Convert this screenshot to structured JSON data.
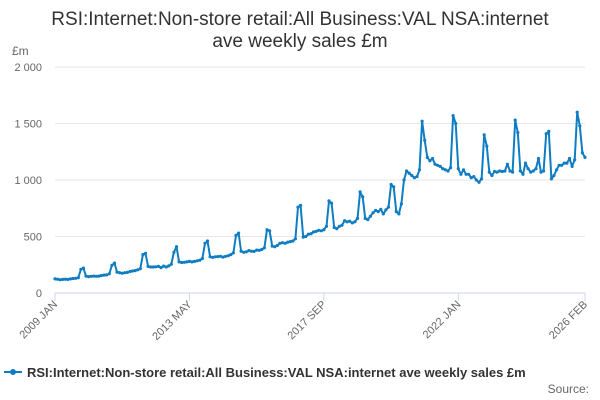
{
  "chart_data": {
    "type": "line",
    "title_lines": [
      "RSI:Internet:Non-store retail:All Business:VAL NSA:internet",
      "ave weekly sales £m"
    ],
    "y_unit": "£m",
    "ylim": [
      0,
      2000
    ],
    "y_ticks": [
      {
        "value": 0,
        "label": "0"
      },
      {
        "value": 500,
        "label": "500"
      },
      {
        "value": 1000,
        "label": "1 000"
      },
      {
        "value": 1500,
        "label": "1 500"
      },
      {
        "value": 2000,
        "label": "2 000"
      }
    ],
    "x_range": [
      "2009-01",
      "2026-02"
    ],
    "x_ticks": [
      {
        "value": "2009-01",
        "label": "2009 JAN"
      },
      {
        "value": "2013-05",
        "label": "2013 MAY"
      },
      {
        "value": "2017-09",
        "label": "2017 SEP"
      },
      {
        "value": "2022-01",
        "label": "2022 JAN"
      },
      {
        "value": "2026-02",
        "label": "2026 FEB"
      }
    ],
    "grid": true,
    "legend_position": "bottom",
    "series": [
      {
        "name": "RSI:Internet:Non-store retail:All Business:VAL NSA:internet ave weekly sales £m",
        "color": "#0f7dc2",
        "points": [
          [
            "2009-01",
            125
          ],
          [
            "2009-02",
            122
          ],
          [
            "2009-03",
            118
          ],
          [
            "2009-04",
            120
          ],
          [
            "2009-05",
            122
          ],
          [
            "2009-06",
            120
          ],
          [
            "2009-07",
            125
          ],
          [
            "2009-08",
            128
          ],
          [
            "2009-09",
            130
          ],
          [
            "2009-10",
            135
          ],
          [
            "2009-11",
            210
          ],
          [
            "2009-12",
            220
          ],
          [
            "2010-01",
            150
          ],
          [
            "2010-02",
            145
          ],
          [
            "2010-03",
            148
          ],
          [
            "2010-04",
            150
          ],
          [
            "2010-05",
            148
          ],
          [
            "2010-06",
            150
          ],
          [
            "2010-07",
            155
          ],
          [
            "2010-08",
            158
          ],
          [
            "2010-09",
            160
          ],
          [
            "2010-10",
            170
          ],
          [
            "2010-11",
            245
          ],
          [
            "2010-12",
            265
          ],
          [
            "2011-01",
            185
          ],
          [
            "2011-02",
            180
          ],
          [
            "2011-03",
            175
          ],
          [
            "2011-04",
            180
          ],
          [
            "2011-05",
            182
          ],
          [
            "2011-06",
            190
          ],
          [
            "2011-07",
            195
          ],
          [
            "2011-08",
            198
          ],
          [
            "2011-09",
            205
          ],
          [
            "2011-10",
            215
          ],
          [
            "2011-11",
            340
          ],
          [
            "2011-12",
            350
          ],
          [
            "2012-01",
            235
          ],
          [
            "2012-02",
            230
          ],
          [
            "2012-03",
            230
          ],
          [
            "2012-04",
            232
          ],
          [
            "2012-05",
            235
          ],
          [
            "2012-06",
            225
          ],
          [
            "2012-07",
            238
          ],
          [
            "2012-08",
            230
          ],
          [
            "2012-09",
            240
          ],
          [
            "2012-10",
            255
          ],
          [
            "2012-11",
            360
          ],
          [
            "2012-12",
            410
          ],
          [
            "2013-01",
            275
          ],
          [
            "2013-02",
            270
          ],
          [
            "2013-03",
            272
          ],
          [
            "2013-04",
            275
          ],
          [
            "2013-05",
            280
          ],
          [
            "2013-06",
            275
          ],
          [
            "2013-07",
            280
          ],
          [
            "2013-08",
            285
          ],
          [
            "2013-09",
            290
          ],
          [
            "2013-10",
            305
          ],
          [
            "2013-11",
            440
          ],
          [
            "2013-12",
            460
          ],
          [
            "2014-01",
            320
          ],
          [
            "2014-02",
            315
          ],
          [
            "2014-03",
            320
          ],
          [
            "2014-04",
            322
          ],
          [
            "2014-05",
            325
          ],
          [
            "2014-06",
            318
          ],
          [
            "2014-07",
            325
          ],
          [
            "2014-08",
            330
          ],
          [
            "2014-09",
            340
          ],
          [
            "2014-10",
            355
          ],
          [
            "2014-11",
            510
          ],
          [
            "2014-12",
            530
          ],
          [
            "2015-01",
            370
          ],
          [
            "2015-02",
            360
          ],
          [
            "2015-03",
            365
          ],
          [
            "2015-04",
            375
          ],
          [
            "2015-05",
            370
          ],
          [
            "2015-06",
            368
          ],
          [
            "2015-07",
            380
          ],
          [
            "2015-08",
            378
          ],
          [
            "2015-09",
            385
          ],
          [
            "2015-10",
            400
          ],
          [
            "2015-11",
            560
          ],
          [
            "2015-12",
            550
          ],
          [
            "2016-01",
            415
          ],
          [
            "2016-02",
            410
          ],
          [
            "2016-03",
            420
          ],
          [
            "2016-04",
            440
          ],
          [
            "2016-05",
            445
          ],
          [
            "2016-06",
            440
          ],
          [
            "2016-07",
            450
          ],
          [
            "2016-08",
            455
          ],
          [
            "2016-09",
            460
          ],
          [
            "2016-10",
            480
          ],
          [
            "2016-11",
            760
          ],
          [
            "2016-12",
            775
          ],
          [
            "2017-01",
            495
          ],
          [
            "2017-02",
            500
          ],
          [
            "2017-03",
            520
          ],
          [
            "2017-04",
            525
          ],
          [
            "2017-05",
            540
          ],
          [
            "2017-06",
            545
          ],
          [
            "2017-07",
            555
          ],
          [
            "2017-08",
            550
          ],
          [
            "2017-09",
            560
          ],
          [
            "2017-10",
            590
          ],
          [
            "2017-11",
            815
          ],
          [
            "2017-12",
            795
          ],
          [
            "2018-01",
            580
          ],
          [
            "2018-02",
            570
          ],
          [
            "2018-03",
            590
          ],
          [
            "2018-04",
            600
          ],
          [
            "2018-05",
            640
          ],
          [
            "2018-06",
            630
          ],
          [
            "2018-07",
            635
          ],
          [
            "2018-08",
            620
          ],
          [
            "2018-09",
            630
          ],
          [
            "2018-10",
            660
          ],
          [
            "2018-11",
            895
          ],
          [
            "2018-12",
            850
          ],
          [
            "2019-01",
            660
          ],
          [
            "2019-02",
            650
          ],
          [
            "2019-03",
            680
          ],
          [
            "2019-04",
            710
          ],
          [
            "2019-05",
            730
          ],
          [
            "2019-06",
            720
          ],
          [
            "2019-07",
            740
          ],
          [
            "2019-08",
            700
          ],
          [
            "2019-09",
            735
          ],
          [
            "2019-10",
            760
          ],
          [
            "2019-11",
            960
          ],
          [
            "2019-12",
            940
          ],
          [
            "2020-01",
            720
          ],
          [
            "2020-02",
            700
          ],
          [
            "2020-03",
            790
          ],
          [
            "2020-04",
            1000
          ],
          [
            "2020-05",
            1080
          ],
          [
            "2020-06",
            1060
          ],
          [
            "2020-07",
            1040
          ],
          [
            "2020-08",
            1020
          ],
          [
            "2020-09",
            1030
          ],
          [
            "2020-10",
            1090
          ],
          [
            "2020-11",
            1520
          ],
          [
            "2020-12",
            1350
          ],
          [
            "2021-01",
            1200
          ],
          [
            "2021-02",
            1170
          ],
          [
            "2021-03",
            1190
          ],
          [
            "2021-04",
            1140
          ],
          [
            "2021-05",
            1130
          ],
          [
            "2021-06",
            1120
          ],
          [
            "2021-07",
            1100
          ],
          [
            "2021-08",
            1090
          ],
          [
            "2021-09",
            1080
          ],
          [
            "2021-10",
            1110
          ],
          [
            "2021-11",
            1570
          ],
          [
            "2021-12",
            1500
          ],
          [
            "2022-01",
            1100
          ],
          [
            "2022-02",
            1050
          ],
          [
            "2022-03",
            1090
          ],
          [
            "2022-04",
            1050
          ],
          [
            "2022-05",
            1050
          ],
          [
            "2022-06",
            1020
          ],
          [
            "2022-07",
            1030
          ],
          [
            "2022-08",
            1000
          ],
          [
            "2022-09",
            980
          ],
          [
            "2022-10",
            1010
          ],
          [
            "2022-11",
            1400
          ],
          [
            "2022-12",
            1300
          ],
          [
            "2023-01",
            1070
          ],
          [
            "2023-02",
            1040
          ],
          [
            "2023-03",
            1075
          ],
          [
            "2023-04",
            1070
          ],
          [
            "2023-05",
            1080
          ],
          [
            "2023-06",
            1075
          ],
          [
            "2023-07",
            1080
          ],
          [
            "2023-08",
            1140
          ],
          [
            "2023-09",
            1080
          ],
          [
            "2023-10",
            1070
          ],
          [
            "2023-11",
            1530
          ],
          [
            "2023-12",
            1420
          ],
          [
            "2024-01",
            1080
          ],
          [
            "2024-02",
            1050
          ],
          [
            "2024-03",
            1150
          ],
          [
            "2024-04",
            1100
          ],
          [
            "2024-05",
            1070
          ],
          [
            "2024-06",
            1080
          ],
          [
            "2024-07",
            1100
          ],
          [
            "2024-08",
            1190
          ],
          [
            "2024-09",
            1070
          ],
          [
            "2024-10",
            1080
          ],
          [
            "2024-11",
            1410
          ],
          [
            "2024-12",
            1430
          ],
          [
            "2025-01",
            1010
          ],
          [
            "2025-02",
            1040
          ],
          [
            "2025-03",
            1090
          ],
          [
            "2025-04",
            1130
          ],
          [
            "2025-05",
            1130
          ],
          [
            "2025-06",
            1150
          ],
          [
            "2025-07",
            1150
          ],
          [
            "2025-08",
            1190
          ],
          [
            "2025-09",
            1120
          ],
          [
            "2025-10",
            1180
          ],
          [
            "2025-11",
            1600
          ],
          [
            "2025-12",
            1480
          ],
          [
            "2026-01",
            1240
          ],
          [
            "2026-02",
            1200
          ]
        ]
      }
    ],
    "source_label": "Source:"
  }
}
